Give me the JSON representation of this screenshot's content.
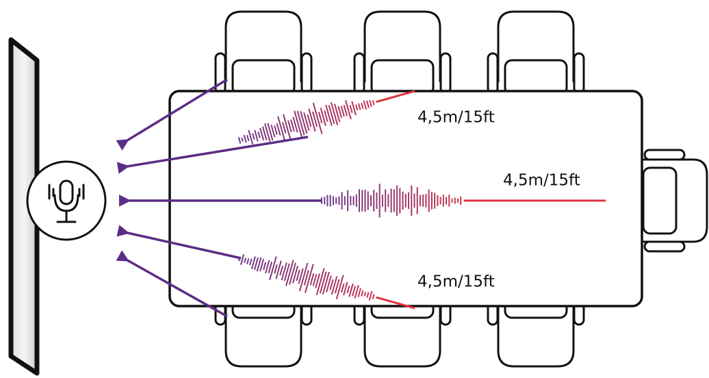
{
  "labels": {
    "top": "4,5m/15ft",
    "middle": "4,5m/15ft",
    "bottom": "4,5m/15ft"
  }
}
